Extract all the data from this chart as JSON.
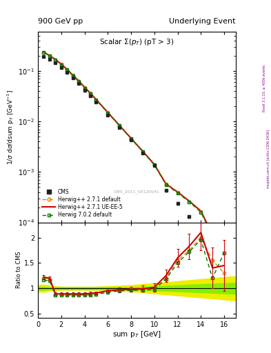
{
  "title_left": "900 GeV pp",
  "title_right": "Underlying Event",
  "plot_title": "Scalar $\\Sigma(p_T)$ (pT > 3)",
  "xlabel": "sum p$_T$ [GeV]",
  "ylabel_main": "1/$\\sigma$ d$\\sigma$/dsum p$_T$ [GeV$^{-1}$]",
  "ylabel_ratio": "Ratio to CMS",
  "watermark": "CMS_2011_S9120041",
  "right_label": "mcplots.cern.ch [arXiv:1306.3436]",
  "right_label2": "Rivet 3.1.10, ≥ 400k events",
  "cms_x": [
    0.5,
    1.0,
    1.5,
    2.0,
    2.5,
    3.0,
    3.5,
    4.0,
    4.5,
    5.0,
    6.0,
    7.0,
    8.0,
    9.0,
    10.0,
    11.0,
    12.0,
    13.0,
    14.0,
    15.0,
    16.0
  ],
  "cms_y": [
    0.195,
    0.17,
    0.145,
    0.118,
    0.094,
    0.073,
    0.056,
    0.042,
    0.032,
    0.024,
    0.0135,
    0.0076,
    0.0043,
    0.0024,
    0.00134,
    0.00043,
    0.000238,
    0.00013,
    7.1e-05,
    3.7e-05,
    4.8e-05
  ],
  "cms_yerr": [
    0.006,
    0.005,
    0.004,
    0.003,
    0.003,
    0.002,
    0.0015,
    0.001,
    0.0009,
    0.0007,
    0.0004,
    0.00022,
    0.00012,
    6.8e-05,
    3.8e-05,
    2.1e-05,
    1.2e-05,
    6.5e-06,
    3.6e-06,
    1.9e-06,
    1.2e-06
  ],
  "mc_x": [
    0.5,
    1.0,
    1.5,
    2.0,
    2.5,
    3.0,
    3.5,
    4.0,
    4.5,
    5.0,
    6.0,
    7.0,
    8.0,
    9.0,
    10.0,
    11.0,
    12.0,
    13.0,
    14.0,
    15.0,
    16.0
  ],
  "hwpp271_y": [
    0.235,
    0.2,
    0.168,
    0.135,
    0.107,
    0.082,
    0.063,
    0.047,
    0.036,
    0.027,
    0.015,
    0.0083,
    0.0046,
    0.00254,
    0.00139,
    0.00057,
    0.00039,
    0.000257,
    0.000161,
    5.4e-05,
    7.9e-05
  ],
  "hwpp271ueee5_y": [
    0.237,
    0.202,
    0.17,
    0.137,
    0.108,
    0.083,
    0.064,
    0.048,
    0.0365,
    0.0274,
    0.01515,
    0.0084,
    0.00465,
    0.00258,
    0.001415,
    0.00058,
    0.0004,
    0.000265,
    0.000168,
    5.7e-05,
    8.1e-05
  ],
  "hw702_y": [
    0.234,
    0.199,
    0.167,
    0.134,
    0.106,
    0.081,
    0.062,
    0.046,
    0.0355,
    0.0267,
    0.01485,
    0.00825,
    0.00455,
    0.00252,
    0.001375,
    0.00056,
    0.000385,
    0.000255,
    0.00016,
    5.3e-05,
    7.8e-05
  ],
  "ratio_x": [
    0.5,
    1.0,
    1.5,
    2.0,
    2.5,
    3.0,
    3.5,
    4.0,
    4.5,
    5.0,
    6.0,
    7.0,
    8.0,
    9.0,
    10.0,
    11.0,
    12.0,
    13.0,
    14.0,
    15.0,
    16.0
  ],
  "ratio_hwpp271_y": [
    1.2,
    1.18,
    0.87,
    0.87,
    0.88,
    0.88,
    0.88,
    0.88,
    0.88,
    0.89,
    0.93,
    0.96,
    0.97,
    0.97,
    1.0,
    1.2,
    1.55,
    1.75,
    2.0,
    1.55,
    1.3
  ],
  "ratio_hwpp271ueee5_y": [
    1.22,
    1.2,
    0.89,
    0.89,
    0.89,
    0.89,
    0.89,
    0.89,
    0.9,
    0.91,
    0.95,
    0.97,
    0.98,
    0.99,
    1.02,
    1.25,
    1.6,
    1.83,
    2.1,
    1.4,
    1.45
  ],
  "ratio_hwpp271ueee5_yerr": [
    0.04,
    0.03,
    0.03,
    0.03,
    0.03,
    0.03,
    0.03,
    0.03,
    0.03,
    0.03,
    0.03,
    0.04,
    0.05,
    0.06,
    0.08,
    0.12,
    0.18,
    0.25,
    0.35,
    0.4,
    0.5
  ],
  "ratio_hw702_y": [
    1.16,
    1.15,
    0.86,
    0.86,
    0.87,
    0.87,
    0.87,
    0.87,
    0.87,
    0.88,
    0.92,
    0.95,
    0.96,
    0.96,
    0.98,
    1.18,
    1.5,
    1.72,
    1.96,
    1.2,
    1.7
  ],
  "band_x": [
    0.0,
    0.5,
    1.0,
    1.5,
    2.0,
    2.5,
    3.0,
    3.5,
    4.0,
    4.5,
    5.0,
    6.0,
    7.0,
    8.0,
    9.0,
    10.0,
    11.0,
    12.0,
    13.0,
    14.0,
    15.0,
    16.0,
    17.0
  ],
  "band_yellow_lo": [
    0.92,
    0.92,
    0.94,
    0.95,
    0.96,
    0.96,
    0.96,
    0.96,
    0.96,
    0.96,
    0.96,
    0.95,
    0.94,
    0.93,
    0.91,
    0.89,
    0.87,
    0.85,
    0.83,
    0.81,
    0.79,
    0.77,
    0.75
  ],
  "band_yellow_hi": [
    1.08,
    1.08,
    1.06,
    1.05,
    1.04,
    1.04,
    1.04,
    1.04,
    1.04,
    1.04,
    1.04,
    1.05,
    1.06,
    1.07,
    1.09,
    1.11,
    1.13,
    1.15,
    1.17,
    1.19,
    1.21,
    1.23,
    1.25
  ],
  "band_green_lo": [
    0.96,
    0.96,
    0.97,
    0.97,
    0.97,
    0.97,
    0.97,
    0.97,
    0.97,
    0.97,
    0.97,
    0.97,
    0.97,
    0.97,
    0.96,
    0.95,
    0.94,
    0.93,
    0.92,
    0.91,
    0.9,
    0.89,
    0.88
  ],
  "band_green_hi": [
    1.04,
    1.04,
    1.03,
    1.03,
    1.03,
    1.03,
    1.03,
    1.03,
    1.03,
    1.03,
    1.03,
    1.03,
    1.03,
    1.03,
    1.04,
    1.05,
    1.06,
    1.07,
    1.08,
    1.09,
    1.1,
    1.11,
    1.12
  ],
  "color_cms": "#222222",
  "color_hwpp271": "#dd8800",
  "color_hwpp271ueee5": "#cc0000",
  "color_hw702": "#007700",
  "color_band_yellow": "#eeee00",
  "color_band_green": "#88ee00",
  "xlim": [
    0,
    17
  ],
  "ylim_main": [
    0.0001,
    0.6
  ],
  "ylim_ratio": [
    0.42,
    2.3
  ]
}
